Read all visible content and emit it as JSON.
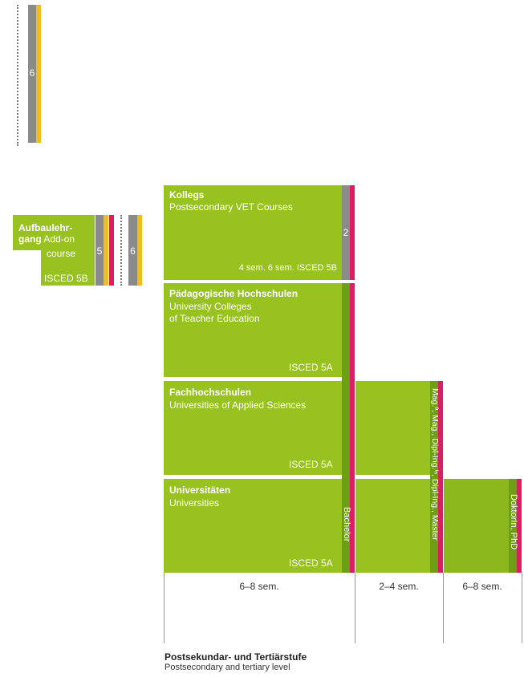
{
  "top_bar": {
    "number": "6"
  },
  "aufbaulehrgang": {
    "title_line1": "Aufbaulehr-",
    "title_line2": "gang",
    "subtitle_a": "Add-on",
    "subtitle_b": "course",
    "isced": "ISCED 5B",
    "number": "5"
  },
  "side_bar": {
    "number": "6"
  },
  "kollegs": {
    "title": "Kollegs",
    "subtitle": "Postsecondary VET Courses",
    "footer": "4 sem. 6 sem. ISCED 5B",
    "number": "2"
  },
  "ph": {
    "title": "Pädagogische Hochschulen",
    "subtitle_1": "University Colleges",
    "subtitle_2": "of Teacher Education",
    "isced": "ISCED 5A"
  },
  "fh": {
    "title": "Fachhochschulen",
    "subtitle": "Universities of Applied Sciences",
    "isced": "ISCED 5A"
  },
  "uni": {
    "title": "Universitäten",
    "subtitle": "Universities",
    "isced": "ISCED 5A"
  },
  "degrees": {
    "bachelor": "Bachelor",
    "master": "Mag.ª, Mag., Dipl-Ing.ⁱⁿ, Dipl-Ing., Master",
    "phd": "DoktorIn, PhD"
  },
  "durations": {
    "first": "6–8 sem.",
    "second": "2–4 sem.",
    "third": "6–8 sem."
  },
  "footer": {
    "title": "Postsekundar- und Tertiärstufe",
    "subtitle": "Postsecondary and tertiary level"
  },
  "colors": {
    "green": "#97c21f",
    "dark_green": "#6e9e16",
    "grey": "#8a8a8a",
    "yellow": "#f2bd1c",
    "pink": "#dd1c63"
  }
}
